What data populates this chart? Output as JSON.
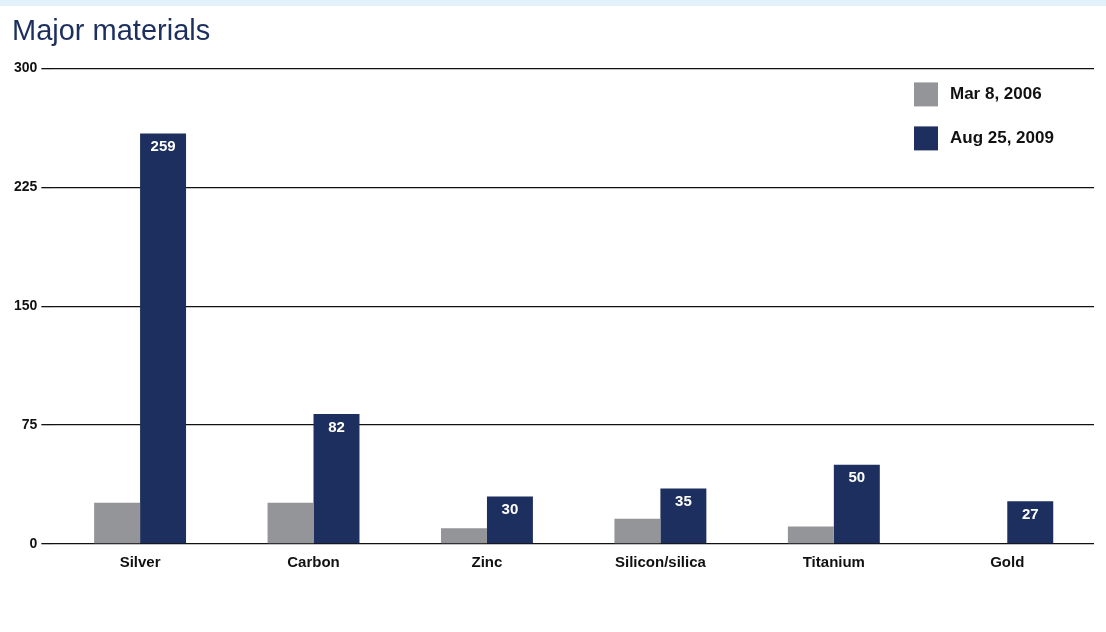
{
  "chart_data": {
    "type": "bar",
    "title": "Major materials",
    "categories": [
      "Silver",
      "Carbon",
      "Zinc",
      "Silicon/silica",
      "Titanium",
      "Gold"
    ],
    "series": [
      {
        "name": "Mar 8, 2006",
        "color": "#939598",
        "values": [
          26,
          26,
          10,
          16,
          11,
          0
        ]
      },
      {
        "name": "Aug 25, 2009",
        "color": "#1d2f5e",
        "values": [
          259,
          82,
          30,
          35,
          50,
          27
        ],
        "value_labels": [
          "259",
          "82",
          "30",
          "35",
          "50",
          "27"
        ]
      }
    ],
    "ylim": [
      0,
      300
    ],
    "yticks": [
      0,
      75,
      150,
      225,
      300
    ],
    "grid": "y",
    "legend": "top right"
  }
}
